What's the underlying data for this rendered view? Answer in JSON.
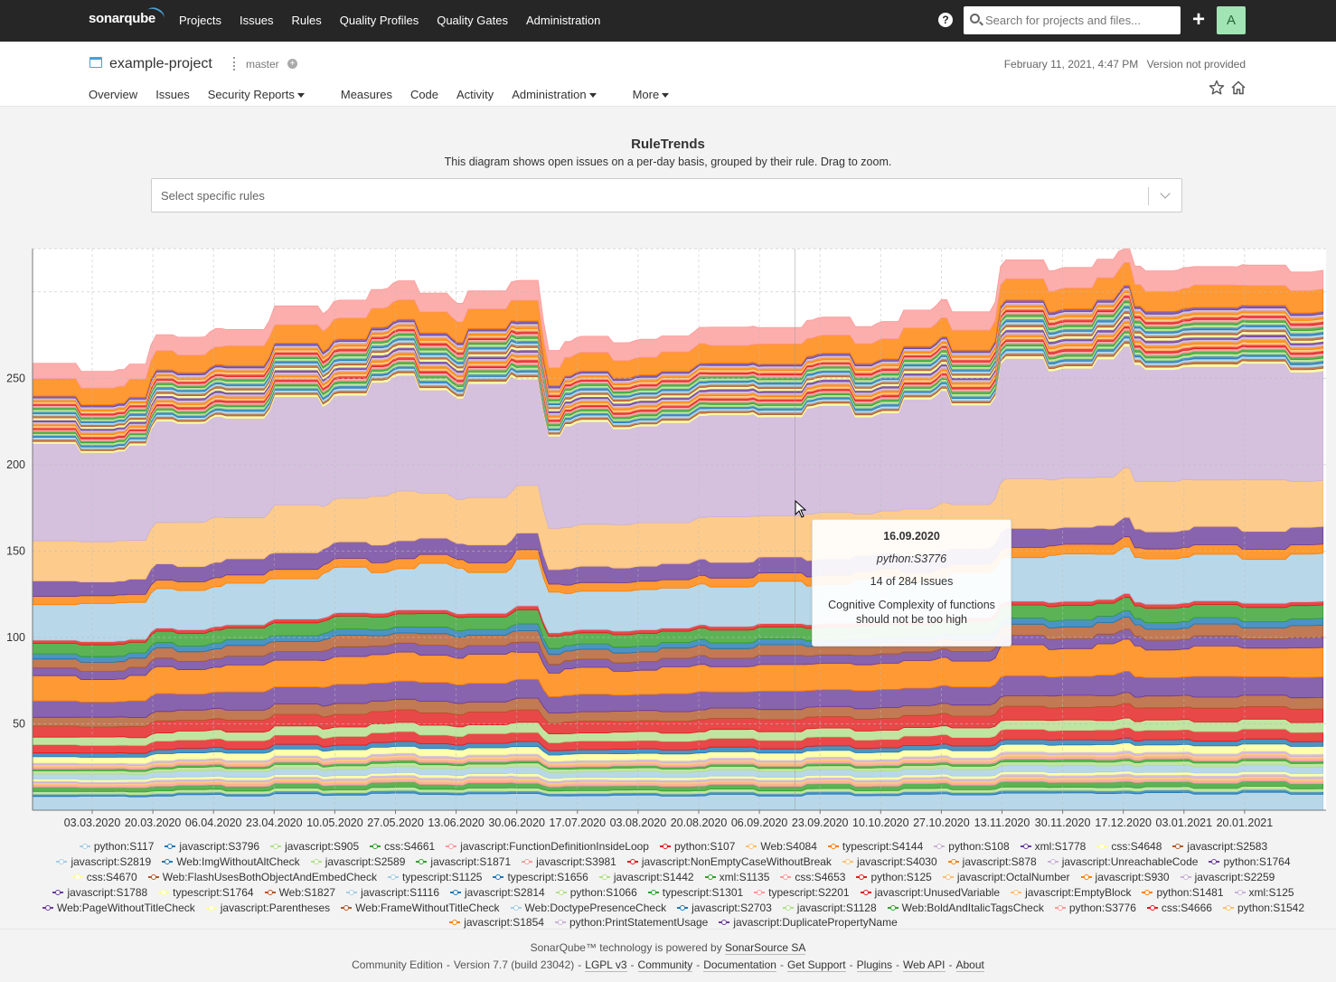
{
  "topnav": {
    "logo": "sonarqube",
    "links": [
      "Projects",
      "Issues",
      "Rules",
      "Quality Profiles",
      "Quality Gates",
      "Administration"
    ],
    "help_icon": "question-circle-icon",
    "help_glyph": "?",
    "search_placeholder": "Search for projects and files...",
    "plus_glyph": "+",
    "avatar_letter": "A"
  },
  "project": {
    "name": "example-project",
    "branch": "master",
    "branch_add_glyph": "+",
    "date": "February 11, 2021, 4:47 PM",
    "version": "Version not provided",
    "tabs": [
      {
        "label": "Overview",
        "dropdown": false
      },
      {
        "label": "Issues",
        "dropdown": false
      },
      {
        "label": "Security Reports",
        "dropdown": true
      },
      {
        "label": "Measures",
        "dropdown": false
      },
      {
        "label": "Code",
        "dropdown": false
      },
      {
        "label": "Activity",
        "dropdown": false
      },
      {
        "label": "Administration",
        "dropdown": true
      },
      {
        "label": "More",
        "dropdown": true
      }
    ]
  },
  "page": {
    "title": "RuleTrends",
    "subtitle": "This diagram shows open issues on a per-day basis, grouped by their rule. Drag to zoom.",
    "select_placeholder": "Select specific rules"
  },
  "tooltip": {
    "date": "16.09.2020",
    "rule": "python:S3776",
    "count": "14 of 284 Issues",
    "description": "Cognitive Complexity of functions should not be too high"
  },
  "chart_data": {
    "type": "area",
    "stacked": true,
    "xlabel": "",
    "ylabel": "",
    "x_tick_labels": [
      "03.03.2020",
      "20.03.2020",
      "06.04.2020",
      "23.04.2020",
      "10.05.2020",
      "27.05.2020",
      "13.06.2020",
      "30.06.2020",
      "17.07.2020",
      "03.08.2020",
      "20.08.2020",
      "06.09.2020",
      "23.09.2020",
      "10.10.2020",
      "27.10.2020",
      "13.11.2020",
      "30.11.2020",
      "17.12.2020",
      "03.01.2021",
      "20.01.2021"
    ],
    "y_ticks": [
      50,
      100,
      150,
      200,
      250
    ],
    "ylim": [
      0,
      325
    ],
    "grid": true,
    "legend_position": "bottom",
    "total_series": {
      "x": [
        "03.03.2020",
        "10.03.2020",
        "20.03.2020",
        "06.04.2020",
        "23.04.2020",
        "10.05.2020",
        "27.05.2020",
        "13.06.2020",
        "30.06.2020",
        "08.07.2020",
        "17.07.2020",
        "03.08.2020",
        "20.08.2020",
        "06.09.2020",
        "23.09.2020",
        "10.10.2020",
        "27.10.2020",
        "13.11.2020",
        "30.11.2020",
        "17.12.2020",
        "20.12.2020",
        "03.01.2021",
        "20.01.2021",
        "11.02.2021"
      ],
      "values": [
        256,
        257,
        274,
        279,
        290,
        298,
        303,
        297,
        310,
        269,
        272,
        274,
        279,
        281,
        283,
        286,
        292,
        315,
        317,
        326,
        313,
        315,
        314,
        315
      ]
    },
    "series": [
      {
        "name": "python:S117",
        "color": "#a6cee3"
      },
      {
        "name": "javascript:S3796",
        "color": "#1f78b4"
      },
      {
        "name": "javascript:S905",
        "color": "#b2df8a"
      },
      {
        "name": "css:S4661",
        "color": "#33a02c"
      },
      {
        "name": "javascript:FunctionDefinitionInsideLoop",
        "color": "#fb9a99"
      },
      {
        "name": "python:S107",
        "color": "#e31a1c"
      },
      {
        "name": "Web:S4084",
        "color": "#fdbf6f"
      },
      {
        "name": "typescript:S4144",
        "color": "#ff7f00"
      },
      {
        "name": "python:S108",
        "color": "#cab2d6"
      },
      {
        "name": "xml:S1778",
        "color": "#6a3d9a"
      },
      {
        "name": "css:S4648",
        "color": "#ffff99"
      },
      {
        "name": "javascript:S2583",
        "color": "#b15928"
      },
      {
        "name": "javascript:S2819",
        "color": "#a6cee3"
      },
      {
        "name": "Web:ImgWithoutAltCheck",
        "color": "#1f78b4"
      },
      {
        "name": "javascript:S2589",
        "color": "#b2df8a"
      },
      {
        "name": "javascript:S1871",
        "color": "#33a02c"
      },
      {
        "name": "javascript:S3981",
        "color": "#fb9a99"
      },
      {
        "name": "javascript:NonEmptyCaseWithoutBreak",
        "color": "#e31a1c"
      },
      {
        "name": "javascript:S4030",
        "color": "#fdbf6f"
      },
      {
        "name": "javascript:S878",
        "color": "#ff7f00"
      },
      {
        "name": "javascript:UnreachableCode",
        "color": "#cab2d6"
      },
      {
        "name": "python:S1764",
        "color": "#6a3d9a"
      },
      {
        "name": "css:S4670",
        "color": "#ffff99"
      },
      {
        "name": "Web:FlashUsesBothObjectAndEmbedCheck",
        "color": "#b15928"
      },
      {
        "name": "typescript:S1125",
        "color": "#a6cee3"
      },
      {
        "name": "typescript:S1656",
        "color": "#1f78b4"
      },
      {
        "name": "javascript:S1442",
        "color": "#b2df8a"
      },
      {
        "name": "xml:S1135",
        "color": "#33a02c"
      },
      {
        "name": "css:S4653",
        "color": "#fb9a99"
      },
      {
        "name": "python:S125",
        "color": "#e31a1c"
      },
      {
        "name": "javascript:OctalNumber",
        "color": "#fdbf6f"
      },
      {
        "name": "javascript:S930",
        "color": "#ff7f00"
      },
      {
        "name": "javascript:S2259",
        "color": "#cab2d6"
      },
      {
        "name": "javascript:S1788",
        "color": "#6a3d9a"
      },
      {
        "name": "typescript:S1764",
        "color": "#ffff99"
      },
      {
        "name": "Web:S1827",
        "color": "#b15928"
      },
      {
        "name": "javascript:S1116",
        "color": "#a6cee3"
      },
      {
        "name": "javascript:S2814",
        "color": "#1f78b4"
      },
      {
        "name": "python:S1066",
        "color": "#b2df8a"
      },
      {
        "name": "typescript:S1301",
        "color": "#33a02c"
      },
      {
        "name": "typescript:S2201",
        "color": "#fb9a99"
      },
      {
        "name": "javascript:UnusedVariable",
        "color": "#e31a1c"
      },
      {
        "name": "javascript:EmptyBlock",
        "color": "#fdbf6f"
      },
      {
        "name": "python:S1481",
        "color": "#ff7f00"
      },
      {
        "name": "xml:S125",
        "color": "#cab2d6"
      },
      {
        "name": "Web:PageWithoutTitleCheck",
        "color": "#6a3d9a"
      },
      {
        "name": "javascript:Parentheses",
        "color": "#ffff99"
      },
      {
        "name": "Web:FrameWithoutTitleCheck",
        "color": "#b15928"
      },
      {
        "name": "Web:DoctypePresenceCheck",
        "color": "#a6cee3"
      },
      {
        "name": "javascript:S2703",
        "color": "#1f78b4"
      },
      {
        "name": "javascript:S1128",
        "color": "#b2df8a"
      },
      {
        "name": "Web:BoldAndItalicTagsCheck",
        "color": "#33a02c"
      },
      {
        "name": "python:S3776",
        "color": "#fb9a99"
      },
      {
        "name": "css:S4666",
        "color": "#e31a1c"
      },
      {
        "name": "python:S1542",
        "color": "#fdbf6f"
      },
      {
        "name": "javascript:S1854",
        "color": "#ff7f00"
      },
      {
        "name": "python:PrintStatementUsage",
        "color": "#cab2d6"
      },
      {
        "name": "javascript:DuplicatePropertyName",
        "color": "#6a3d9a"
      }
    ]
  },
  "footer": {
    "line1_prefix": "SonarQube™ technology is powered by",
    "line1_link": "SonarSource SA",
    "edition": "Community Edition",
    "version": "Version 7.7 (build 23042)",
    "links": [
      "LGPL v3",
      "Community",
      "Documentation",
      "Get Support",
      "Plugins",
      "Web API",
      "About"
    ]
  }
}
